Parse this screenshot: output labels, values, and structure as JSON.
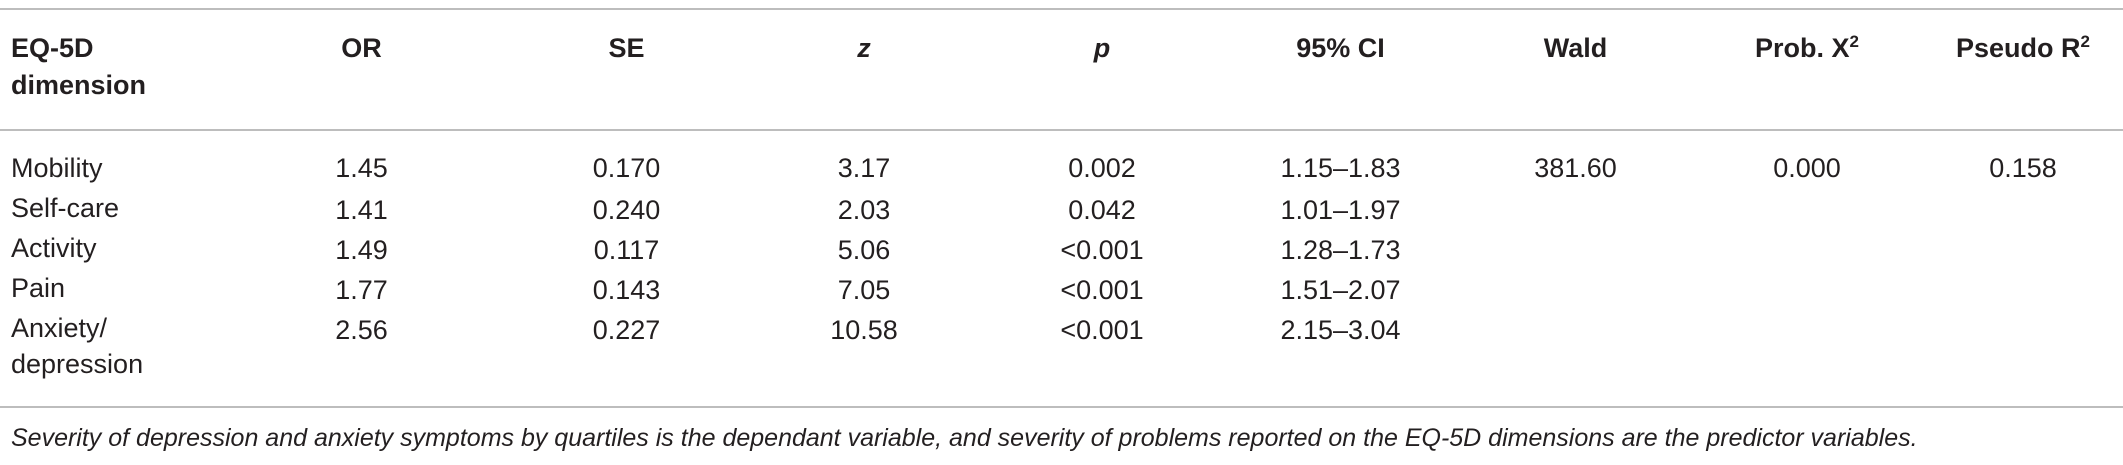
{
  "table": {
    "headers": [
      {
        "main": "EQ-5D dimension",
        "sup": ""
      },
      {
        "main": "OR",
        "sup": ""
      },
      {
        "main": "SE",
        "sup": ""
      },
      {
        "main": "z",
        "sup": ""
      },
      {
        "main": "p",
        "sup": ""
      },
      {
        "main": "95% CI",
        "sup": ""
      },
      {
        "main": "Wald",
        "sup": ""
      },
      {
        "main": "Prob. X",
        "sup": "2"
      },
      {
        "main": "Pseudo R",
        "sup": "2"
      }
    ],
    "rows": [
      {
        "dimension": "Mobility",
        "or": "1.45",
        "se": "0.170",
        "z": "3.17",
        "p": "0.002",
        "ci": "1.15–1.83",
        "wald": "381.60",
        "prob": "0.000",
        "r2": "0.158"
      },
      {
        "dimension": "Self-care",
        "or": "1.41",
        "se": "0.240",
        "z": "2.03",
        "p": "0.042",
        "ci": "1.01–1.97",
        "wald": "",
        "prob": "",
        "r2": ""
      },
      {
        "dimension": "Activity",
        "or": "1.49",
        "se": "0.117",
        "z": "5.06",
        "p": "<0.001",
        "ci": "1.28–1.73",
        "wald": "",
        "prob": "",
        "r2": ""
      },
      {
        "dimension": "Pain",
        "or": "1.77",
        "se": "0.143",
        "z": "7.05",
        "p": "<0.001",
        "ci": "1.51–2.07",
        "wald": "",
        "prob": "",
        "r2": ""
      },
      {
        "dimension": "Anxiety/ depression",
        "or": "2.56",
        "se": "0.227",
        "z": "10.58",
        "p": "<0.001",
        "ci": "2.15–3.04",
        "wald": "",
        "prob": "",
        "r2": ""
      }
    ]
  },
  "footnote": "Severity of depression and anxiety symptoms by quartiles is the dependant variable, and severity of problems reported on the EQ-5D dimensions are the predictor variables."
}
